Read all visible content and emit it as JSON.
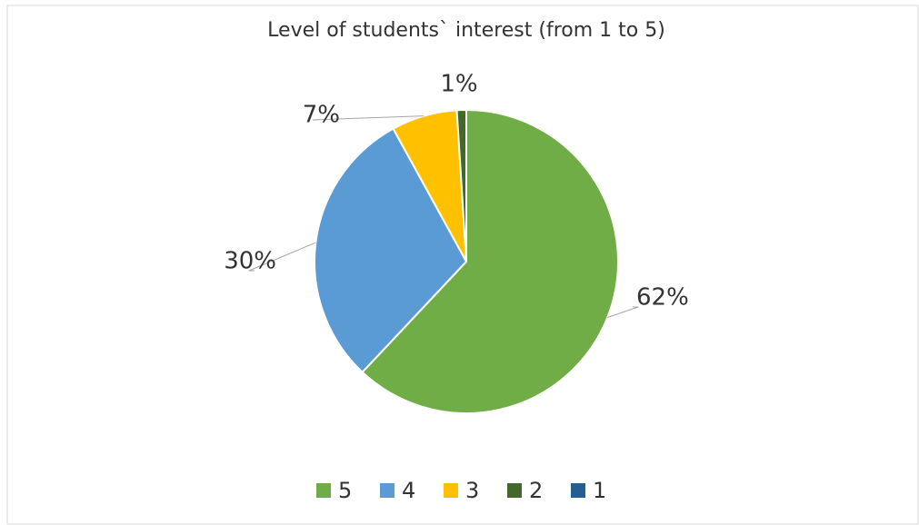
{
  "chart_data": {
    "type": "pie",
    "title": "Level of students` interest (from 1 to 5)",
    "categories": [
      "5",
      "4",
      "3",
      "2",
      "1"
    ],
    "values": [
      62,
      30,
      7,
      1,
      0
    ],
    "value_labels": [
      "62%",
      "30%",
      "7%",
      "1%",
      null
    ],
    "colors": [
      "#70ad47",
      "#5b9bd5",
      "#ffc000",
      "#43682b",
      "#255e91"
    ],
    "legend": "bottom"
  }
}
